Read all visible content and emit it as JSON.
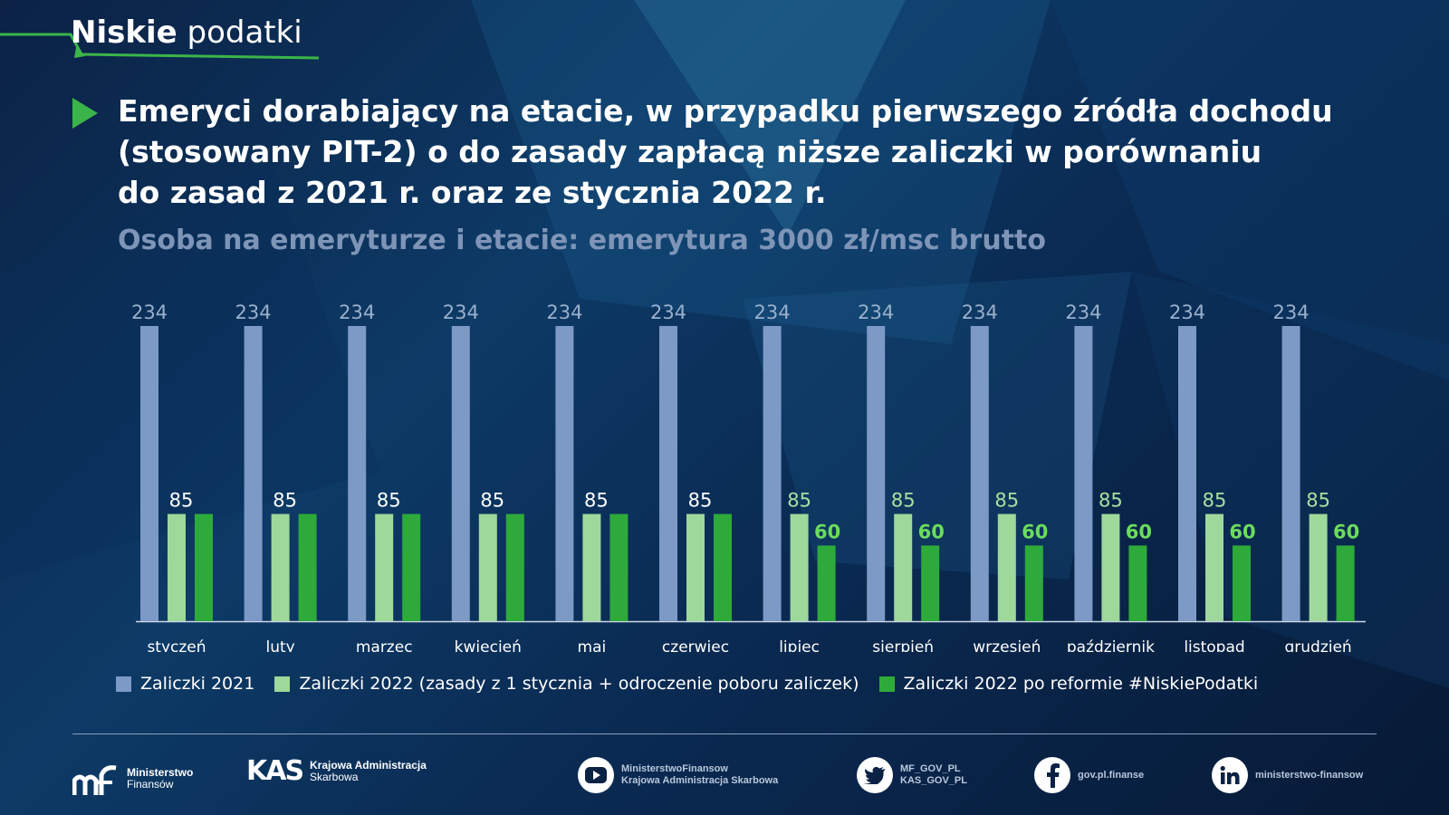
{
  "brand": {
    "bold": "Niskie",
    "light": "podatki"
  },
  "title": "Emeryci dorabiający na etacie, w przypadku pierwszego źródła dochodu\n(stosowany PIT-2) o do zasady zapłacą niższe zaliczki w porównaniu\ndo zasad z 2021 r. oraz ze stycznia 2022 r.",
  "subtitle": "Osoba na emeryturze i etacie: emerytura 3000 zł/msc brutto",
  "colors": {
    "s2021": "#7d99c6",
    "s2022": "#9ed89a",
    "reform": "#2eaa3a",
    "reformLabel": "#6cdc5c",
    "lightLabel": "#a8e0a0",
    "grey": "#9ab0cc"
  },
  "chart_data": {
    "type": "bar",
    "title": "",
    "xlabel": "",
    "ylabel": "",
    "ylim": [
      0,
      234
    ],
    "grid": false,
    "legend_position": "bottom",
    "categories": [
      "styczeń",
      "luty",
      "marzec",
      "kwiecień",
      "maj",
      "czerwiec",
      "lipiec",
      "sierpień",
      "wrzesień",
      "październik",
      "listopad",
      "grudzień"
    ],
    "series": [
      {
        "name": "Zaliczki 2021",
        "color": "#7d99c6",
        "values": [
          234,
          234,
          234,
          234,
          234,
          234,
          234,
          234,
          234,
          234,
          234,
          234
        ]
      },
      {
        "name": "Zaliczki 2022 (zasady z 1 stycznia + odroczenie poboru zaliczek)",
        "color": "#9ed89a",
        "values": [
          85,
          85,
          85,
          85,
          85,
          85,
          85,
          85,
          85,
          85,
          85,
          85
        ]
      },
      {
        "name": "Zaliczki 2022 po reformie #NiskiePodatki",
        "color": "#2eaa3a",
        "values": [
          85,
          85,
          85,
          85,
          85,
          85,
          60,
          60,
          60,
          60,
          60,
          60
        ]
      }
    ]
  },
  "footer": {
    "mf": {
      "line1": "Ministerstwo",
      "line2": "Finansów"
    },
    "kas_logo": "KAS",
    "kas": {
      "line1": "Krajowa Administracja",
      "line2": "Skarbowa"
    },
    "youtube": {
      "icon": "youtube-icon",
      "line1": "MinisterstwoFinansow",
      "line2": "Krajowa Administracja Skarbowa"
    },
    "twitter": {
      "icon": "twitter-icon",
      "line1": "MF_GOV_PL",
      "line2": "KAS_GOV_PL"
    },
    "facebook": {
      "icon": "facebook-icon",
      "text": "gov.pl.finanse"
    },
    "linkedin": {
      "icon": "linkedin-icon",
      "text": "ministerstwo-finansow"
    }
  }
}
